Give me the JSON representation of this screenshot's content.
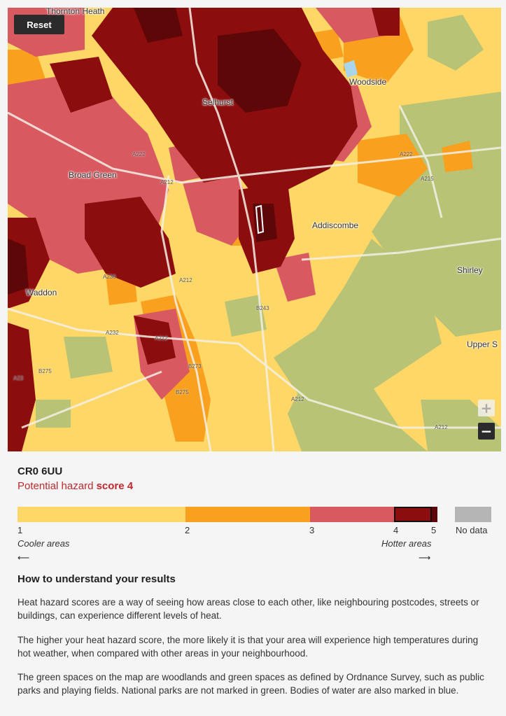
{
  "map": {
    "reset_label": "Reset",
    "zoom_in": "+",
    "zoom_out": "−",
    "places": [
      "Thornton Heath",
      "Woodside",
      "Selhurst",
      "Broad Green",
      "Addiscombe",
      "Shirley",
      "Waddon",
      "Upper S"
    ],
    "roads": [
      "A222",
      "A212",
      "A215",
      "A222",
      "A212",
      "A236",
      "A232",
      "B243",
      "A212",
      "B275",
      "B273",
      "B275",
      "A212",
      "A212",
      "A23"
    ],
    "colors": {
      "score1": "#ffd766",
      "score2": "#f9a11f",
      "score3": "#d85a60",
      "score4": "#8c0d0d",
      "score5": "#5e0708",
      "green": "#b9c376",
      "nodata": "#b5b5b5"
    }
  },
  "result": {
    "postcode": "CR0 6UU",
    "hazard_prefix": "Potential hazard ",
    "hazard_score": "score 4"
  },
  "legend": {
    "ticks": [
      "1",
      "2",
      "3",
      "4",
      "5"
    ],
    "nodata": "No data",
    "cooler": "Cooler areas",
    "hotter": "Hotter areas"
  },
  "info": {
    "heading": "How to understand your results",
    "p1": "Heat hazard scores are a way of seeing how areas close to each other, like neighbouring postcodes, streets or buildings, can experience different levels of heat.",
    "p2": "The higher your heat hazard score, the more likely it is that your area will experience high temperatures during hot weather, when compared with other areas in your neighbourhood.",
    "p3": "The green spaces on the map are woodlands and green spaces as defined by Ordnance Survey, such as public parks and playing fields. National parks are not marked in green. Bodies of water are also marked in blue."
  }
}
